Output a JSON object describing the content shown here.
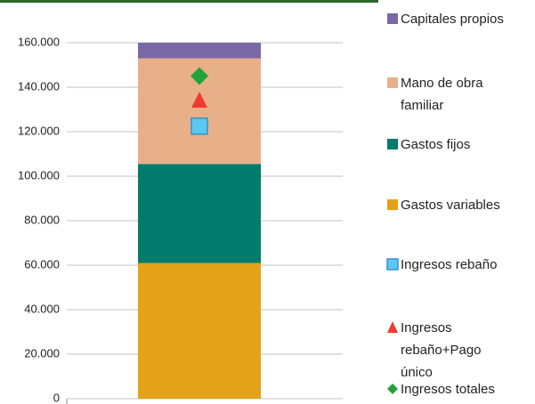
{
  "chart_data": {
    "type": "bar",
    "stacked": true,
    "categories": [
      null
    ],
    "ylim": [
      0,
      160000
    ],
    "yticks": [
      0,
      {
        "value": 20000,
        "label": "20.000"
      },
      {
        "value": 40000,
        "label": "40.000"
      },
      {
        "value": 60000,
        "label": "60.000"
      },
      {
        "value": 80000,
        "label": "80.000"
      },
      {
        "value": 100000,
        "label": "100.000"
      },
      {
        "value": 120000,
        "label": "120.000"
      },
      {
        "value": 140000,
        "label": "140.000"
      },
      {
        "value": 160000,
        "label": "160.000"
      }
    ],
    "grid": true,
    "legend": "right",
    "series": [
      {
        "name": "Gastos variables",
        "color": "#e3a21a",
        "values": [
          61000
        ]
      },
      {
        "name": "Gastos fijos",
        "color": "#007b6c",
        "values": [
          44500
        ]
      },
      {
        "name": "Mano de obra familiar",
        "color": "#e8b088",
        "values": [
          47500
        ]
      },
      {
        "name": "Capitales propios",
        "color": "#7a68a6",
        "values": [
          7000
        ]
      },
      {
        "name": "Ingresos rebaño",
        "type": "scatter",
        "marker": "square",
        "color": "#5bc8f0",
        "values": [
          122500
        ]
      },
      {
        "name": "Ingresos rebaño+Pago único",
        "type": "scatter",
        "marker": "triangle",
        "color": "#f03a30",
        "values": [
          134000
        ]
      },
      {
        "name": "Ingresos totales",
        "type": "scatter",
        "marker": "diamond",
        "color": "#21a33a",
        "values": [
          145000
        ]
      }
    ],
    "legend_order": [
      3,
      2,
      1,
      0,
      4,
      5,
      6
    ]
  }
}
